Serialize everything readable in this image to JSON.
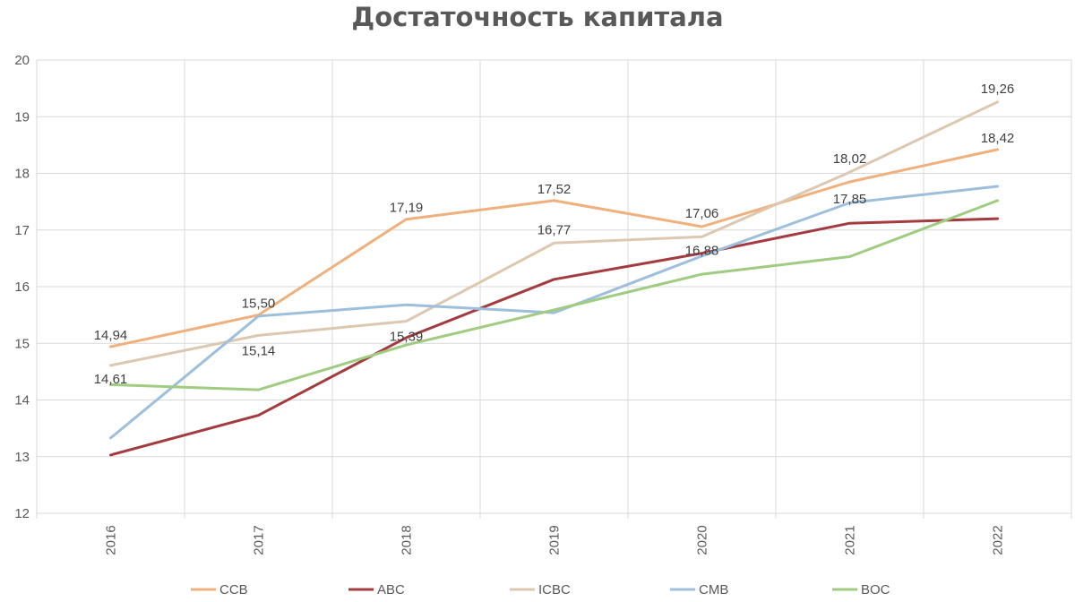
{
  "chart_data": {
    "type": "line",
    "title": "Достаточность капитала",
    "xlabel": "",
    "ylabel": "",
    "categories": [
      "2016",
      "2017",
      "2018",
      "2019",
      "2020",
      "2021",
      "2022"
    ],
    "ylim": [
      12,
      20
    ],
    "yticks": [
      12,
      13,
      14,
      15,
      16,
      17,
      18,
      19,
      20
    ],
    "grid": true,
    "legend": "bottom",
    "series": [
      {
        "name": "CCB",
        "color": "#f0b07c",
        "values": [
          14.94,
          15.5,
          17.19,
          17.52,
          17.06,
          17.85,
          18.42
        ],
        "labels": [
          "14,94",
          "15,50",
          "17,19",
          "17,52",
          "17,06",
          "17,85",
          "18,42"
        ]
      },
      {
        "name": "ABC",
        "color": "#a33b3f",
        "values": [
          13.03,
          13.73,
          15.1,
          16.13,
          16.59,
          17.12,
          17.2
        ],
        "labels": []
      },
      {
        "name": "ICBC",
        "color": "#dcc8b0",
        "values": [
          14.61,
          15.14,
          15.39,
          16.77,
          16.88,
          18.02,
          19.26
        ],
        "labels": [
          "14,61",
          "15,14",
          "15,39",
          "16,77",
          "16,88",
          "18,02",
          "19,26"
        ]
      },
      {
        "name": "CMB",
        "color": "#9dbfdc",
        "values": [
          13.33,
          15.48,
          15.68,
          15.54,
          16.54,
          17.48,
          17.77
        ],
        "labels": []
      },
      {
        "name": "BOC",
        "color": "#9fcc80",
        "values": [
          14.27,
          14.18,
          14.97,
          15.59,
          16.22,
          16.53,
          17.52
        ],
        "labels": []
      }
    ]
  }
}
